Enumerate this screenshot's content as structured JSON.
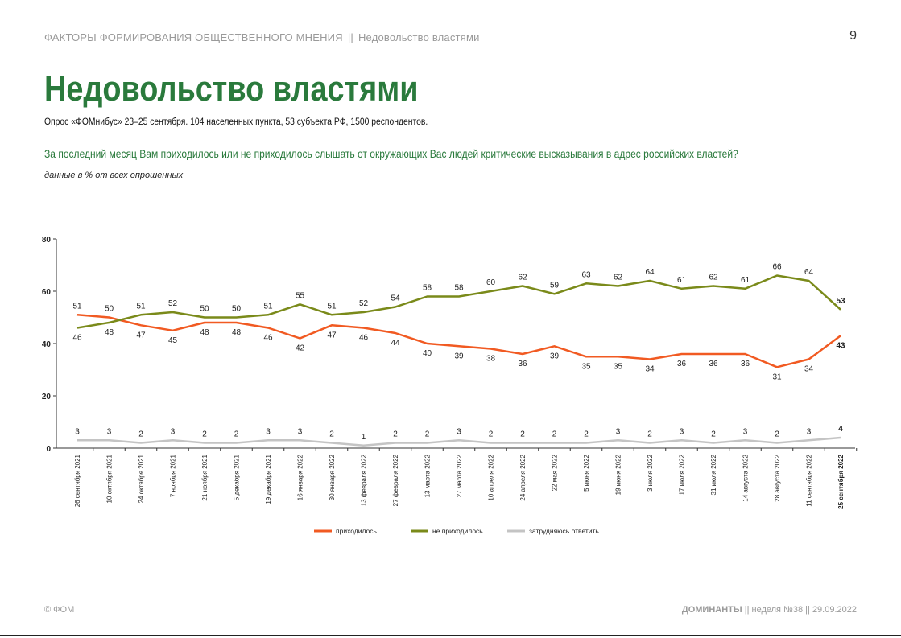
{
  "header": {
    "section": "ФАКТОРЫ ФОРМИРОВАНИЯ ОБЩЕСТВЕННОГО МНЕНИЯ",
    "separator": "||",
    "topic": "Недовольство властями",
    "page_number": "9"
  },
  "title": "Недовольство властями",
  "survey_info": "Опрос «ФОМнибус» 23–25 сентября. 104 населенных пункта, 53 субъекта РФ, 1500 респондентов.",
  "question": "За последний месяц Вам приходилось или не приходилось слышать от окружающих Вас людей критические высказывания в адрес российских властей?",
  "note": "данные в % от всех опрошенных",
  "footer": {
    "copyright": "© ФОМ",
    "publication": "ДОМИНАНТЫ",
    "sep": "||",
    "week": "неделя №38",
    "date": "29.09.2022"
  },
  "chart_data": {
    "type": "line",
    "title": "",
    "xlabel": "",
    "ylabel": "",
    "ylim": [
      0,
      80
    ],
    "yticks": [
      "0",
      "20",
      "40",
      "60",
      "80"
    ],
    "grid": false,
    "legend_position": "bottom",
    "categories": [
      "26 сентября 2021",
      "10 октября 2021",
      "24 октября 2021",
      "7 ноября 2021",
      "21 ноября 2021",
      "5 декабря 2021",
      "19 декабря 2021",
      "16 января 2022",
      "30 января 2022",
      "13 февраля 2022",
      "27 февраля 2022",
      "13 марта 2022",
      "27 марта 2022",
      "10 апреля 2022",
      "24 апреля 2022",
      "22 мая 2022",
      "5 июня 2022",
      "19 июня 2022",
      "3 июля 2022",
      "17 июля 2022",
      "31 июля 2022",
      "14 августа 2022",
      "28 августа 2022",
      "11 сентября 2022",
      "25 сентября 2022"
    ],
    "series": [
      {
        "name": "приходилось",
        "color": "#f15a22",
        "values": [
          51,
          50,
          47,
          45,
          48,
          48,
          46,
          42,
          47,
          46,
          44,
          40,
          39,
          38,
          36,
          39,
          35,
          35,
          34,
          36,
          36,
          36,
          31,
          34,
          43
        ]
      },
      {
        "name": "не приходилось",
        "color": "#7a8a1a",
        "values": [
          46,
          48,
          51,
          52,
          50,
          50,
          51,
          55,
          51,
          52,
          54,
          58,
          58,
          60,
          62,
          59,
          63,
          62,
          64,
          61,
          62,
          61,
          66,
          64,
          53
        ]
      },
      {
        "name": "затрудняюсь ответить",
        "color": "#c4c4c4",
        "values": [
          3,
          3,
          2,
          3,
          2,
          2,
          3,
          3,
          2,
          1,
          2,
          2,
          3,
          2,
          2,
          2,
          2,
          3,
          2,
          3,
          2,
          3,
          2,
          3,
          4
        ]
      }
    ]
  }
}
